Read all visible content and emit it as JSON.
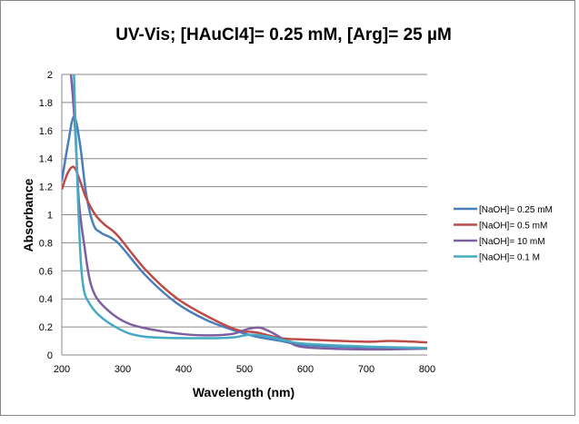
{
  "chart_data": {
    "type": "line",
    "title": "UV-Vis; [HAuCl4]= 0.25 mM, [Arg]= 25 µM",
    "xlabel": "Wavelength (nm)",
    "ylabel": "Absorbance",
    "xlim": [
      200,
      800
    ],
    "ylim": [
      0,
      2
    ],
    "xticks": [
      200,
      300,
      400,
      500,
      600,
      700,
      800
    ],
    "yticks": [
      0,
      0.2,
      0.4,
      0.6,
      0.8,
      1,
      1.2,
      1.4,
      1.6,
      1.8,
      2
    ],
    "grid": "horizontal",
    "legend_position": "right",
    "series": [
      {
        "name": "[NaOH]= 0.25 mM",
        "color": "#4a7ebb",
        "x": [
          200,
          210,
          220,
          230,
          240,
          252,
          265,
          292,
          337,
          387,
          437,
          487,
          520,
          560,
          600,
          700,
          800
        ],
        "y": [
          1.24,
          1.5,
          1.7,
          1.5,
          1.15,
          0.93,
          0.87,
          0.8,
          0.57,
          0.375,
          0.25,
          0.17,
          0.13,
          0.1,
          0.07,
          0.055,
          0.05
        ]
      },
      {
        "name": "[NaOH]= 0.5 mM",
        "color": "#be4b48",
        "x": [
          200,
          210,
          220,
          230,
          240,
          255,
          270,
          292,
          337,
          387,
          437,
          487,
          520,
          560,
          600,
          700,
          740,
          800
        ],
        "y": [
          1.18,
          1.3,
          1.34,
          1.24,
          1.12,
          1.0,
          0.93,
          0.85,
          0.61,
          0.41,
          0.28,
          0.18,
          0.16,
          0.12,
          0.11,
          0.095,
          0.1,
          0.09
        ]
      },
      {
        "name": "[NaOH]= 10 mM",
        "color": "#7d5fa0",
        "x": [
          215,
          222,
          228,
          237,
          248,
          268,
          312,
          387,
          437,
          480,
          505,
          525,
          545,
          570,
          600,
          700,
          800
        ],
        "y": [
          2.0,
          1.6,
          1.1,
          0.78,
          0.5,
          0.35,
          0.22,
          0.155,
          0.14,
          0.15,
          0.185,
          0.195,
          0.16,
          0.1,
          0.055,
          0.04,
          0.045
        ]
      },
      {
        "name": "[NaOH]= 0.1 M",
        "color": "#46aac5",
        "x": [
          220,
          225,
          233,
          248,
          288,
          337,
          437,
          480,
          510,
          540,
          570,
          600,
          700,
          800
        ],
        "y": [
          2.0,
          1.3,
          0.57,
          0.35,
          0.2,
          0.13,
          0.12,
          0.125,
          0.145,
          0.13,
          0.1,
          0.08,
          0.06,
          0.05
        ]
      }
    ]
  }
}
